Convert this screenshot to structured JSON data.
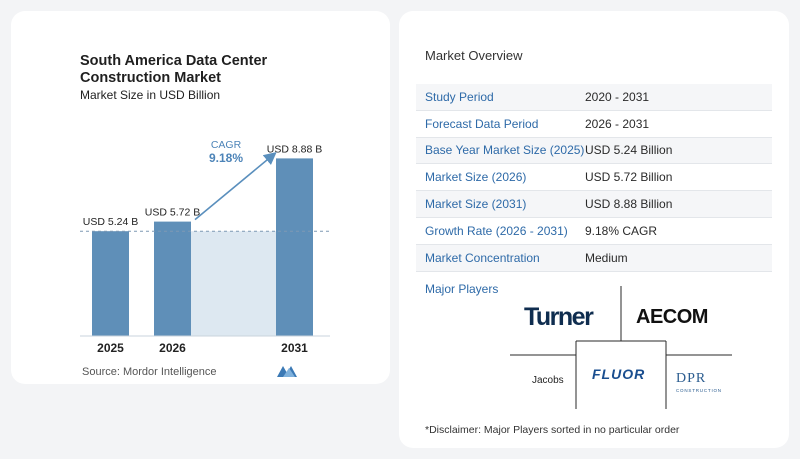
{
  "chart_data": {
    "type": "bar",
    "title": "South America Data Center Construction Market",
    "subtitle": "Market Size in USD Billion",
    "categories": [
      "2025",
      "2026",
      "2031"
    ],
    "values": [
      5.24,
      5.72,
      8.88
    ],
    "data_labels": [
      "USD 5.24 B",
      "USD 5.72 B",
      "USD 8.88 B"
    ],
    "unit": "USD Billion",
    "ylim": [
      0,
      10
    ],
    "reference_line": 5.24,
    "cagr_label": "CAGR",
    "cagr_value": "9.18%",
    "colors": {
      "bar": "#5f8fb8",
      "bar_top": "#4f7fa9",
      "band": "#dde8f1",
      "arrow": "#5a8fbd",
      "reference": "#7f99b4"
    },
    "grid": false,
    "legend": "none"
  },
  "source": "Source:  Mordor Intelligence",
  "overview": {
    "title": "Market Overview",
    "rows": [
      {
        "label": "Study Period",
        "value": "2020 - 2031"
      },
      {
        "label": "Forecast Data Period",
        "value": "2026 - 2031"
      },
      {
        "label": "Base Year Market Size (2025)",
        "value": "USD 5.24 Billion"
      },
      {
        "label": "Market Size (2026)",
        "value": "USD 5.72 Billion"
      },
      {
        "label": "Market Size (2031)",
        "value": "USD 8.88 Billion"
      },
      {
        "label": "Growth Rate (2026 - 2031)",
        "value": "9.18% CAGR"
      },
      {
        "label": "Market Concentration",
        "value": "Medium"
      }
    ]
  },
  "players": {
    "title": "Major Players",
    "logos": [
      "Turner",
      "AECOM",
      "Jacobs",
      "FLUOR",
      "DPR",
      "CONSTRUCTION"
    ]
  },
  "disclaimer": "*Disclaimer: Major Players sorted in no particular order"
}
